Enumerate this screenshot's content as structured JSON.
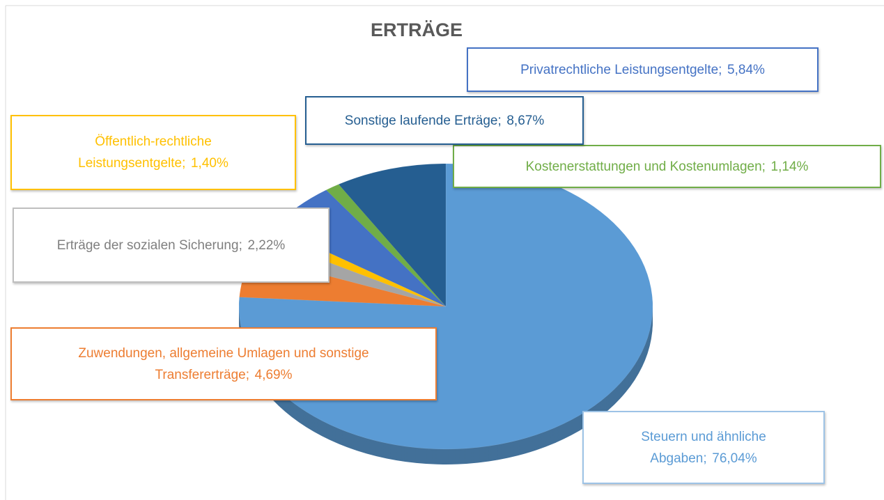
{
  "chart_data": {
    "type": "pie",
    "title": "ERTRÄGE",
    "categories": [
      "Steuern und ähnliche Abgaben",
      "Zuwendungen, allgemeine Umlagen und sonstige Transfererträge",
      "Erträge der sozialen Sicherung",
      "Öffentlich-rechtliche Leistungsentgelte",
      "Privatrechtliche Leistungsentgelte",
      "Kostenerstattungen und Kostenumlagen",
      "Sonstige laufende Erträge"
    ],
    "values": [
      76.04,
      4.69,
      2.22,
      1.4,
      5.84,
      1.14,
      8.67
    ],
    "value_labels": [
      "76,04%",
      "4,69%",
      "2,22%",
      "1,40%",
      "5,84%",
      "1,14%",
      "8,67%"
    ],
    "label_separator": ";",
    "colors": [
      "#5b9bd5",
      "#ed7d31",
      "#a5a5a5",
      "#ffc000",
      "#4472c4",
      "#70ad47",
      "#255e91"
    ]
  }
}
